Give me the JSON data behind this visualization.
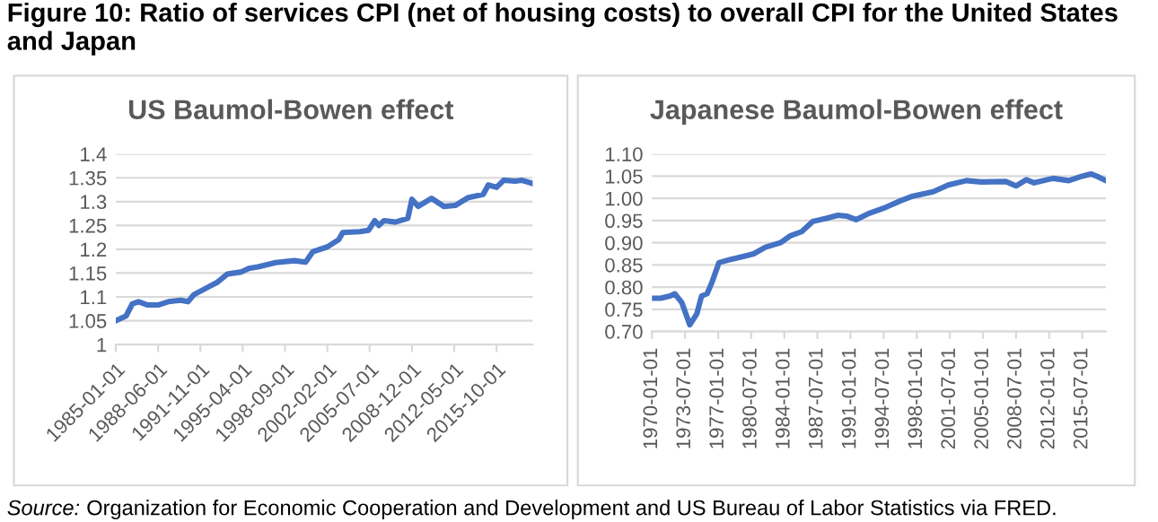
{
  "chart_data": [
    {
      "type": "line",
      "title": "US Baumol-Bowen effect",
      "grid": "y",
      "legend": false,
      "marker": "none",
      "line_style": "solid",
      "xlim": [
        "1985-01-01",
        "2018-09-01"
      ],
      "xticks": [
        "1985-01-01",
        "1988-06-01",
        "1991-11-01",
        "1995-04-01",
        "1998-09-01",
        "2002-02-01",
        "2005-07-01",
        "2008-12-01",
        "2012-05-01",
        "2015-10-01"
      ],
      "ylim": [
        1,
        1.4
      ],
      "yticks": [
        1,
        1.05,
        1.1,
        1.15,
        1.2,
        1.25,
        1.3,
        1.35,
        1.4
      ],
      "series": [
        {
          "color": "#4472c4",
          "x": [
            "1985-01",
            "1985-11",
            "1986-05",
            "1986-11",
            "1987-08",
            "1988-06",
            "1989-04",
            "1990-04",
            "1990-11",
            "1991-05",
            "1992-06",
            "1993-03",
            "1994-01",
            "1995-02",
            "1995-10",
            "1996-07",
            "1997-12",
            "1999-06",
            "2000-05",
            "2000-12",
            "2002-02",
            "2003-01",
            "2003-05",
            "2004-10",
            "2005-06",
            "2005-12",
            "2006-04",
            "2006-09",
            "2007-08",
            "2008-08",
            "2008-12",
            "2009-06",
            "2010-07",
            "2011-07",
            "2012-06",
            "2013-06",
            "2014-09",
            "2015-02",
            "2015-10",
            "2016-05",
            "2017-04",
            "2017-10",
            "2018-09"
          ],
          "values": [
            1.05,
            1.06,
            1.085,
            1.09,
            1.083,
            1.083,
            1.09,
            1.093,
            1.09,
            1.105,
            1.12,
            1.13,
            1.148,
            1.152,
            1.16,
            1.163,
            1.172,
            1.176,
            1.173,
            1.195,
            1.205,
            1.22,
            1.235,
            1.237,
            1.24,
            1.26,
            1.25,
            1.26,
            1.257,
            1.265,
            1.305,
            1.29,
            1.307,
            1.29,
            1.292,
            1.308,
            1.315,
            1.335,
            1.33,
            1.345,
            1.343,
            1.345,
            1.338
          ]
        }
      ]
    },
    {
      "type": "line",
      "title": "Japanese Baumol-Bowen effect",
      "grid": "y",
      "legend": false,
      "marker": "none",
      "line_style": "solid",
      "xlim": [
        "1970-01-01",
        "2018-01-01"
      ],
      "xticks": [
        "1970-01-01",
        "1973-07-01",
        "1977-01-01",
        "1980-07-01",
        "1984-01-01",
        "1987-07-01",
        "1991-01-01",
        "1994-07-01",
        "1998-01-01",
        "2001-07-01",
        "2005-01-01",
        "2008-07-01",
        "2012-01-01",
        "2015-07-01"
      ],
      "ylim": [
        0.7,
        1.1
      ],
      "yticks": [
        {
          "value": 0.7,
          "label": "0.70"
        },
        {
          "value": 0.75,
          "label": "0.75"
        },
        {
          "value": 0.8,
          "label": "0.80"
        },
        {
          "value": 0.85,
          "label": "0.85"
        },
        {
          "value": 0.9,
          "label": "0.90"
        },
        {
          "value": 0.95,
          "label": "0.95"
        },
        {
          "value": 1.0,
          "label": "1.00"
        },
        {
          "value": 1.05,
          "label": "1.05"
        },
        {
          "value": 1.1,
          "label": "1.10"
        }
      ],
      "series": [
        {
          "color": "#4472c4",
          "x": [
            "1970-01",
            "1970-12",
            "1971-12",
            "1972-06",
            "1973-03",
            "1974-01",
            "1974-10",
            "1975-04",
            "1975-11",
            "1976-05",
            "1977-02",
            "1978-04",
            "1979-11",
            "1980-10",
            "1982-01",
            "1983-08",
            "1984-08",
            "1985-11",
            "1987-01",
            "1988-06",
            "1989-09",
            "1990-08",
            "1991-08",
            "1992-11",
            "1994-10",
            "1996-05",
            "1997-08",
            "1999-10",
            "2001-05",
            "2003-04",
            "2004-11",
            "2007-06",
            "2008-07",
            "2009-08",
            "2010-06",
            "2012-06",
            "2014-02",
            "2015-07",
            "2016-06",
            "2017-04",
            "2018-01"
          ],
          "values": [
            0.775,
            0.775,
            0.78,
            0.785,
            0.765,
            0.715,
            0.74,
            0.78,
            0.785,
            0.81,
            0.855,
            0.862,
            0.87,
            0.875,
            0.89,
            0.9,
            0.915,
            0.925,
            0.948,
            0.955,
            0.962,
            0.96,
            0.952,
            0.965,
            0.98,
            0.995,
            1.005,
            1.015,
            1.03,
            1.04,
            1.037,
            1.038,
            1.028,
            1.042,
            1.035,
            1.045,
            1.04,
            1.05,
            1.055,
            1.048,
            1.04
          ]
        }
      ]
    },
    {
      "type": "other",
      "title": "Figure 10: Ratio of services CPI (net of housing costs) to overall CPI for the United States and Japan",
      "annotations": [
        "Source:",
        "Organization for Economic Cooperation and Development and US Bureau of Labor Statistics via FRED."
      ]
    }
  ]
}
